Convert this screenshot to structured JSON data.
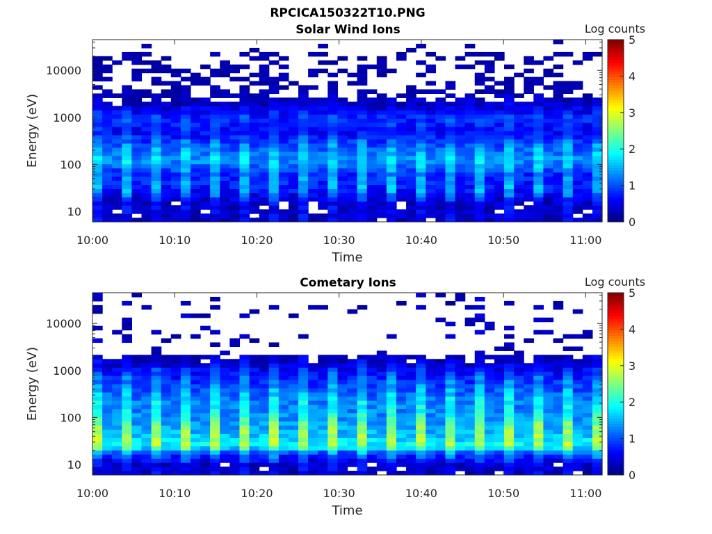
{
  "figure": {
    "title": "RPCICA150322T10.PNG"
  },
  "chart_data": [
    {
      "type": "heatmap",
      "title": "Solar Wind Ions",
      "xlabel": "Time",
      "ylabel": "Energy (eV)",
      "x_ticks": [
        "10:00",
        "10:10",
        "10:20",
        "10:30",
        "10:40",
        "10:50",
        "11:00"
      ],
      "x_range": [
        "10:00",
        "11:02"
      ],
      "y_scale": "log",
      "y_ticks": [
        10,
        100,
        1000,
        10000
      ],
      "y_tick_labels": [
        "10",
        "100",
        "1000",
        "10000"
      ],
      "y_range": [
        6,
        45000
      ],
      "colorbar": {
        "label": "Log counts",
        "range": [
          0,
          5
        ],
        "ticks": [
          0,
          1,
          2,
          3,
          4,
          5
        ],
        "colormap": "jet"
      },
      "grid": false,
      "profile_energy_eV": [
        15,
        30,
        60,
        120,
        250,
        500,
        1000,
        1500,
        2000,
        4000,
        10000,
        30000
      ],
      "profile_log_counts": {
        "high_sweep": [
          0.6,
          1.6,
          1.3,
          1.8,
          1.4,
          0.8,
          1.0,
          0.7,
          0.4,
          0.1,
          0.05,
          0.05
        ],
        "low_sweep": [
          0.3,
          0.7,
          0.8,
          1.3,
          1.0,
          0.6,
          0.8,
          0.5,
          0.3,
          0.05,
          0.05,
          0.05
        ]
      }
    },
    {
      "type": "heatmap",
      "title": "Cometary Ions",
      "xlabel": "Time",
      "ylabel": "Energy (eV)",
      "x_ticks": [
        "10:00",
        "10:10",
        "10:20",
        "10:30",
        "10:40",
        "10:50",
        "11:00"
      ],
      "x_range": [
        "10:00",
        "11:02"
      ],
      "y_scale": "log",
      "y_ticks": [
        10,
        100,
        1000,
        10000
      ],
      "y_tick_labels": [
        "10",
        "100",
        "1000",
        "10000"
      ],
      "y_range": [
        6,
        45000
      ],
      "colorbar": {
        "label": "Log counts",
        "range": [
          0,
          5
        ],
        "ticks": [
          0,
          1,
          2,
          3,
          4,
          5
        ],
        "colormap": "jet"
      },
      "grid": false,
      "profile_energy_eV": [
        10,
        18,
        25,
        40,
        70,
        120,
        250,
        500,
        1000,
        1500,
        2500
      ],
      "profile_log_counts": {
        "high_sweep": [
          0.6,
          1.5,
          2.8,
          2.7,
          2.5,
          2.0,
          1.8,
          1.4,
          1.0,
          0.6,
          0.3
        ],
        "low_sweep": [
          0.3,
          1.0,
          1.9,
          1.6,
          1.4,
          1.3,
          1.2,
          0.9,
          0.6,
          0.3,
          0.1
        ]
      }
    }
  ]
}
